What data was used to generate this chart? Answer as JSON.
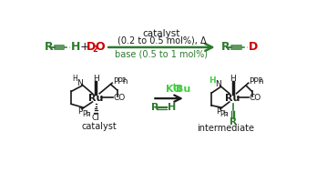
{
  "bg_color": "#ffffff",
  "dark_green": "#2d7a2d",
  "red": "#cc0000",
  "dark_color": "#1a1a1a",
  "light_green": "#44cc44",
  "top_reaction": {
    "above_arrow_line1": "catalyst",
    "above_arrow_line2": "(0.2 to 0.5 mol%), Δ",
    "below_arrow": "base (0.5 to 1 mol%)",
    "delta": "Δ"
  },
  "bottom_reaction": {
    "above_arrow": "KO",
    "above_arrow_super": "t",
    "above_arrow_end": "Bu",
    "below_arrow_R": "R",
    "below_arrow_H": "H",
    "catalyst_label": "catalyst",
    "intermediate_label": "intermediate"
  }
}
